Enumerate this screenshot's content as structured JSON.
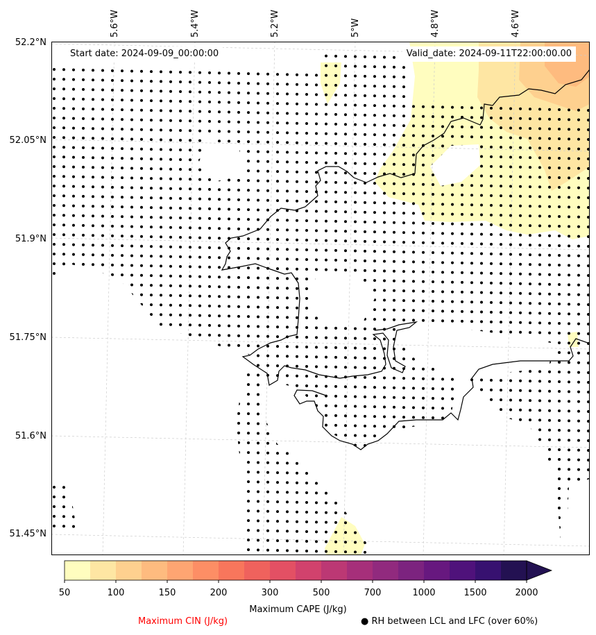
{
  "header": {
    "start_date": "Start date: 2024-09-09_00:00:00",
    "valid_date": "Valid_date: 2024-09-11T22:00:00.00"
  },
  "axes": {
    "lat_ticks": [
      "52.2°N",
      "52.05°N",
      "51.9°N",
      "51.75°N",
      "51.6°N",
      "51.45°N"
    ],
    "lon_ticks": [
      "5.6°W",
      "5.4°W",
      "5.2°W",
      "5°W",
      "4.8°W",
      "4.6°W"
    ]
  },
  "colorbar": {
    "tick_labels": [
      "50",
      "100",
      "150",
      "200",
      "300",
      "500",
      "700",
      "1000",
      "1500",
      "2000"
    ],
    "colors": [
      "#fffdbf",
      "#fee6a3",
      "#fed08f",
      "#febb7f",
      "#fea572",
      "#fd8e65",
      "#f8765c",
      "#ef625d",
      "#e35064",
      "#d1426d",
      "#bc3874",
      "#a62f7a",
      "#912a7e",
      "#7c237f",
      "#67187f",
      "#4f127b",
      "#371170",
      "#231152"
    ],
    "label": "Maximum CAPE (J/kg)",
    "extend": "max"
  },
  "legend": {
    "cin_label": "Maximum CIN (J/kg)",
    "cin_color": "#ff0000",
    "rh_label": "● RH between LCL and LFC (over 60%)"
  }
}
